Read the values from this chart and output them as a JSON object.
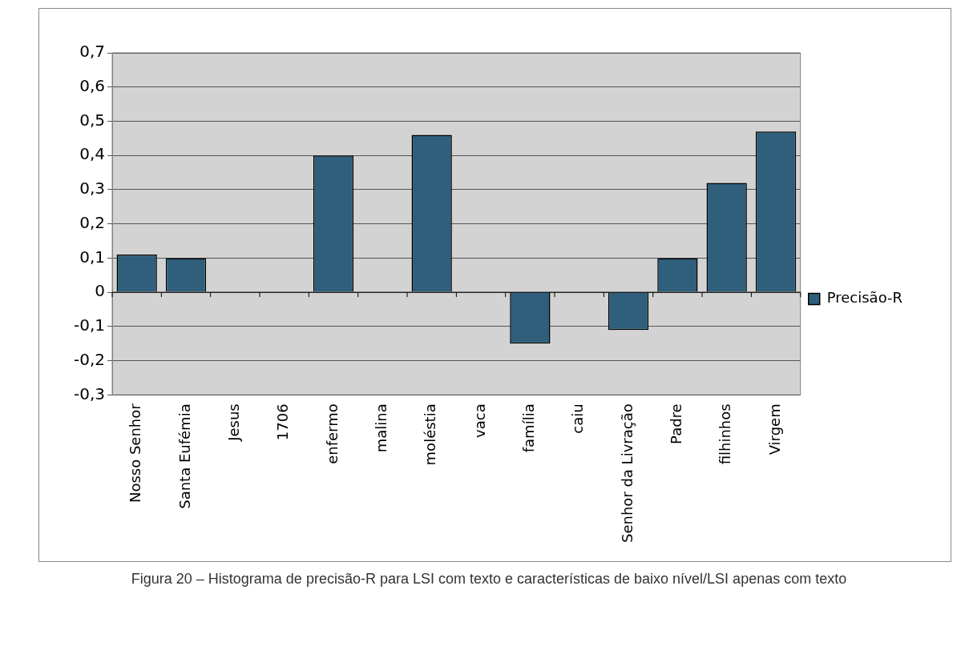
{
  "chart_data": {
    "type": "bar",
    "categories": [
      "Nosso Senhor",
      "Santa Eufémia",
      "Jesus",
      "1706",
      "enfermo",
      "malina",
      "moléstia",
      "vaca",
      "família",
      "caiu",
      "Senhor da Livração",
      "Padre",
      "filhinhos",
      "Virgem"
    ],
    "series": [
      {
        "name": "Precisão-R",
        "color": "#2f5f7a",
        "values": [
          0.11,
          0.1,
          0,
          0,
          0.4,
          0,
          0.46,
          0,
          -0.15,
          0,
          -0.11,
          0.1,
          0.32,
          0.47
        ]
      }
    ],
    "ylim": [
      -0.3,
      0.7
    ],
    "yticks": [
      {
        "value": -0.3,
        "label": "-0,3"
      },
      {
        "value": -0.2,
        "label": "-0,2"
      },
      {
        "value": -0.1,
        "label": "-0,1"
      },
      {
        "value": 0,
        "label": "0"
      },
      {
        "value": 0.1,
        "label": "0,1"
      },
      {
        "value": 0.2,
        "label": "0,2"
      },
      {
        "value": 0.3,
        "label": "0,3"
      },
      {
        "value": 0.4,
        "label": "0,4"
      },
      {
        "value": 0.5,
        "label": "0,5"
      },
      {
        "value": 0.6,
        "label": "0,6"
      },
      {
        "value": 0.7,
        "label": "0,7"
      }
    ],
    "grid": "y",
    "legend": "right",
    "annotations": [
      "Figura 20 – Histograma de precisão-R para LSI com texto e características de baixo nível/LSI apenas com texto"
    ]
  }
}
